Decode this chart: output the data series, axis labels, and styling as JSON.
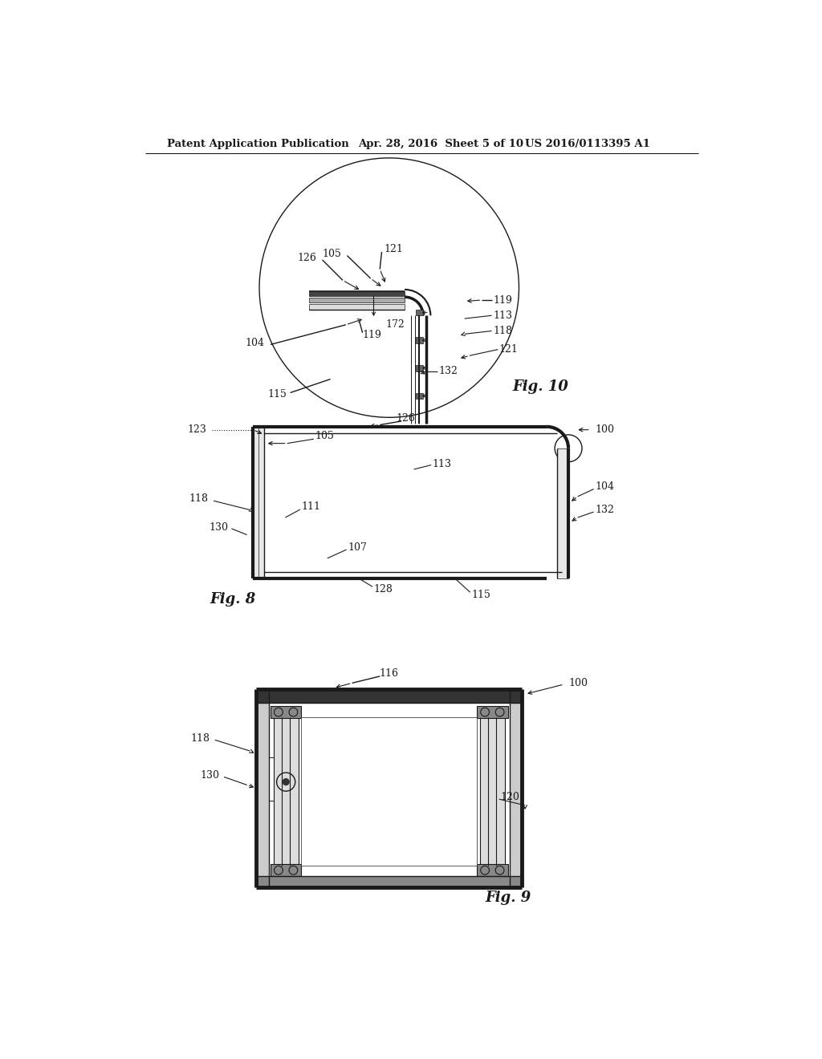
{
  "bg_color": "#ffffff",
  "lc": "#1a1a1a",
  "header_left": "Patent Application Publication",
  "header_mid": "Apr. 28, 2016  Sheet 5 of 10",
  "header_right": "US 2016/0113395 A1",
  "fig10_label": "Fig. 10",
  "fig8_label": "Fig. 8",
  "fig9_label": "Fig. 9"
}
